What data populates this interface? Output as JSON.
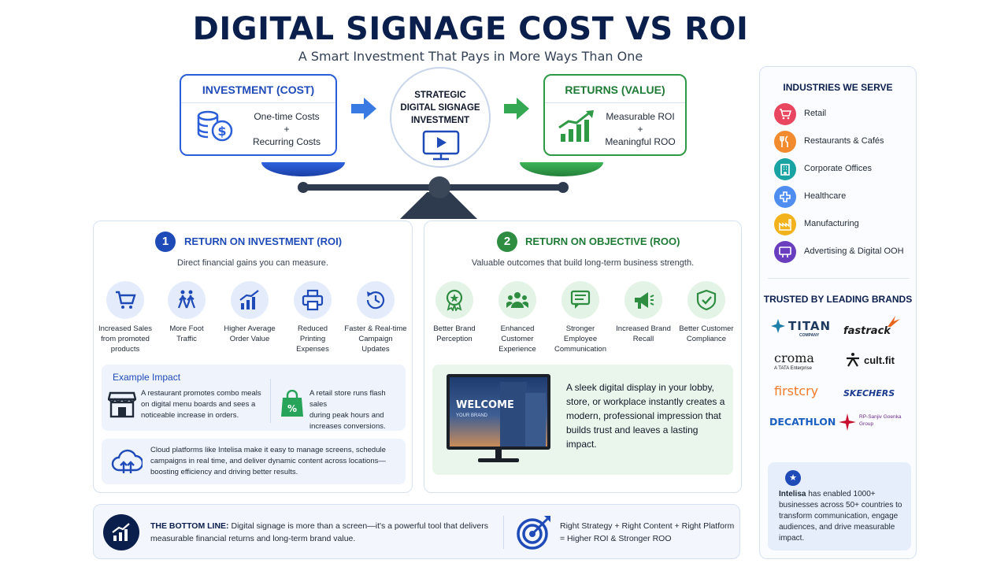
{
  "header": {
    "title": "DIGITAL SIGNAGE COST VS ROI",
    "subtitle": "A Smart Investment That Pays in More Ways Than One"
  },
  "scale": {
    "investment": {
      "title": "INVESTMENT (COST)",
      "line1": "One-time Costs",
      "plus": "+",
      "line2": "Recurring Costs"
    },
    "center": {
      "line1": "STRATEGIC",
      "line2": "DIGITAL SIGNAGE",
      "line3": "INVESTMENT"
    },
    "returns": {
      "title": "RETURNS (VALUE)",
      "line1": "Measurable ROI",
      "plus": "+",
      "line2": "Meaningful ROO"
    }
  },
  "roi": {
    "number": "1",
    "title": "RETURN ON INVESTMENT (ROI)",
    "desc": "Direct financial gains you can measure.",
    "features": [
      {
        "icon": "shopping-cart-icon",
        "l1": "Increased Sales",
        "l2": "from promoted",
        "l3": "products"
      },
      {
        "icon": "walking-people-icon",
        "l1": "More Foot",
        "l2": "Traffic",
        "l3": ""
      },
      {
        "icon": "growth-chart-icon",
        "l1": "Higher Average",
        "l2": "Order Value",
        "l3": ""
      },
      {
        "icon": "printer-icon",
        "l1": "Reduced",
        "l2": "Printing",
        "l3": "Expenses"
      },
      {
        "icon": "clock-refresh-icon",
        "l1": "Faster & Real-time",
        "l2": "Campaign",
        "l3": "Updates"
      }
    ],
    "example": {
      "title": "Example Impact",
      "left": {
        "l1": "A restaurant promotes combo meals",
        "l2": "on digital menu boards and sees a",
        "l3": "noticeable increase in orders."
      },
      "right": {
        "l1": "A retail store runs flash sales",
        "l2": "during peak hours and",
        "l3": "increases conversions."
      }
    },
    "cloud": {
      "l1": "Cloud platforms like Intelisa make it easy to manage screens, schedule",
      "l2": "campaigns in real time, and deliver dynamic content across locations—",
      "l3": "boosting efficiency and driving better results."
    }
  },
  "roo": {
    "number": "2",
    "title": "RETURN ON OBJECTIVE (ROO)",
    "desc": "Valuable outcomes that build long-term business strength.",
    "features": [
      {
        "icon": "award-badge-icon",
        "l1": "Better Brand",
        "l2": "Perception"
      },
      {
        "icon": "customers-group-icon",
        "l1": "Enhanced Customer",
        "l2": "Experience"
      },
      {
        "icon": "chat-message-icon",
        "l1": "Stronger Employee",
        "l2": "Communication"
      },
      {
        "icon": "megaphone-icon",
        "l1": "Increased Brand",
        "l2": "Recall"
      },
      {
        "icon": "shield-check-icon",
        "l1": "Better Customer",
        "l2": "Compliance"
      }
    ],
    "showcase": {
      "welcome": "WELCOME",
      "welcome_sub": "YOUR BRAND",
      "text": "A sleek digital display in your lobby, store, or workplace instantly creates a modern, professional impression that builds trust and leaves a lasting impact."
    }
  },
  "bottom": {
    "label": "THE BOTTOM LINE:",
    "text1": " Digital signage is more than a screen—it's a powerful tool that delivers",
    "text2": "measurable financial returns and long-term brand value.",
    "right1": "Right Strategy + Right Content + Right Platform",
    "right2": "= Higher ROI & Stronger ROO"
  },
  "sidebar": {
    "industries_title": "INDUSTRIES WE SERVE",
    "industries": [
      {
        "label": "Retail",
        "icon": "cart-icon",
        "color": "#e8475f"
      },
      {
        "label": "Restaurants & Cafés",
        "icon": "utensils-icon",
        "color": "#f28a2e"
      },
      {
        "label": "Corporate Offices",
        "icon": "office-building-icon",
        "color": "#1aa3a3"
      },
      {
        "label": "Healthcare",
        "icon": "medical-cross-icon",
        "color": "#4f8ef0"
      },
      {
        "label": "Manufacturing",
        "icon": "factory-icon",
        "color": "#f2b21b"
      },
      {
        "label": "Advertising & Digital OOH",
        "icon": "billboard-icon",
        "color": "#6a3fbf"
      }
    ],
    "brands_title": "TRUSTED BY LEADING BRANDS",
    "brands": [
      {
        "name": "TITAN",
        "sub": "COMPANY"
      },
      {
        "name": "fastrack",
        "sub": ""
      },
      {
        "name": "croma",
        "sub": "A TATA Enterprise"
      },
      {
        "name": "cult.fit",
        "sub": ""
      },
      {
        "name": "firstcry",
        "sub": ""
      },
      {
        "name": "SKECHERS",
        "sub": ""
      },
      {
        "name": "DECATHLON",
        "sub": ""
      },
      {
        "name": "RP-Sanjiv Goenka",
        "sub": "Group"
      }
    ],
    "stat": {
      "strong": "Intelisa",
      "text": " has enabled 1000+ businesses across 50+ countries to transform communication, engage audiences, and drive measurable impact."
    }
  }
}
